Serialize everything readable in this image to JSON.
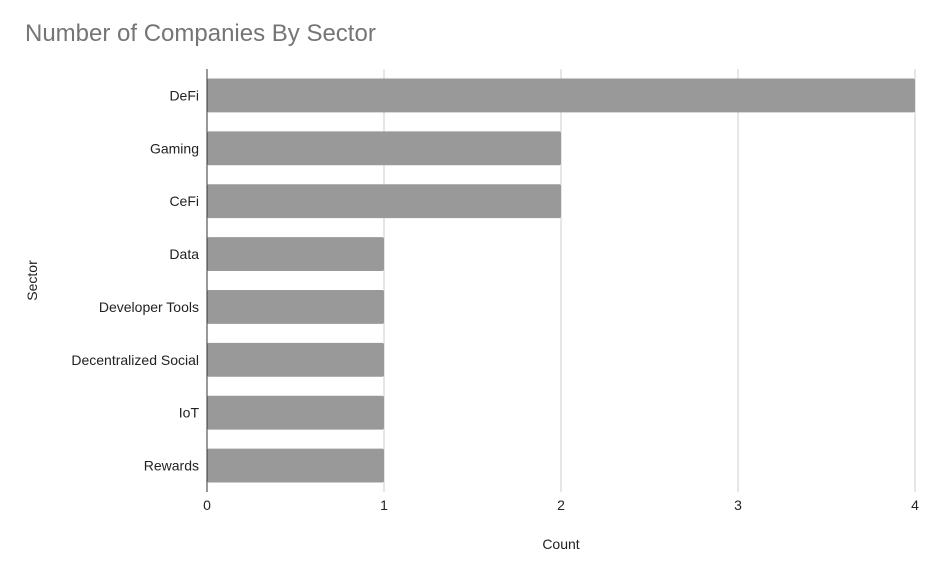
{
  "chart_data": {
    "type": "bar",
    "orientation": "horizontal",
    "title": "Number of Companies By Sector",
    "xlabel": "Count",
    "ylabel": "Sector",
    "categories": [
      "DeFi",
      "Gaming",
      "CeFi",
      "Data",
      "Developer Tools",
      "Decentralized Social",
      "IoT",
      "Rewards"
    ],
    "values": [
      4,
      2,
      2,
      1,
      1,
      1,
      1,
      1
    ],
    "xlim": [
      0,
      4
    ],
    "xticks": [
      0,
      1,
      2,
      3,
      4
    ],
    "grid": true,
    "legend": "none",
    "bar_color": "#999999",
    "grid_color": "#cccccc",
    "axis_color": "#333333"
  }
}
